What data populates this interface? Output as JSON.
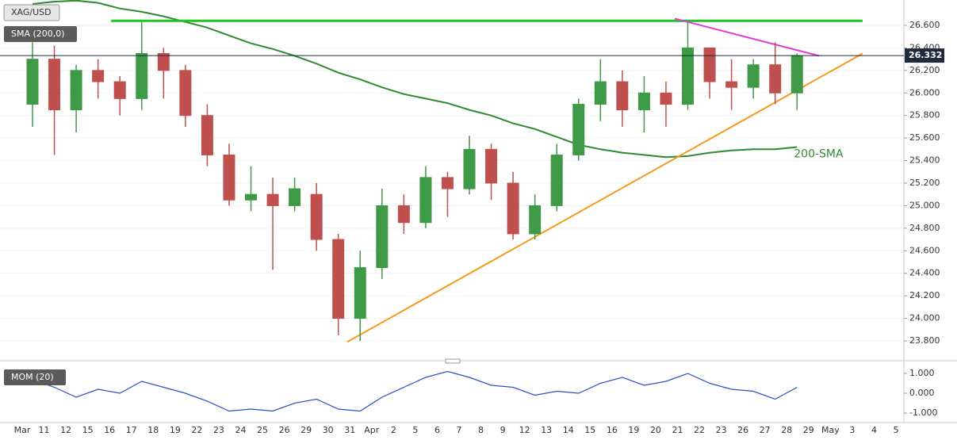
{
  "chart_data": {
    "type": "candlestick",
    "title": "XAG/USD",
    "categories": [
      "Mar",
      "11",
      "12",
      "15",
      "16",
      "17",
      "18",
      "19",
      "22",
      "23",
      "24",
      "25",
      "26",
      "29",
      "30",
      "31",
      "Apr",
      "2",
      "5",
      "6",
      "7",
      "8",
      "9",
      "12",
      "13",
      "14",
      "15",
      "16",
      "19",
      "20",
      "21",
      "22",
      "23",
      "26",
      "27",
      "28",
      "29",
      "May",
      "3",
      "4",
      "5"
    ],
    "open": [
      25.9,
      26.3,
      25.85,
      26.2,
      26.1,
      25.95,
      26.35,
      26.2,
      25.8,
      25.45,
      25.05,
      25.1,
      25.0,
      25.1,
      24.7,
      24.0,
      24.45,
      25.0,
      24.85,
      25.25,
      25.15,
      25.5,
      25.2,
      24.75,
      25.0,
      25.45,
      25.9,
      26.1,
      25.85,
      26.0,
      25.9,
      26.4,
      26.1,
      26.05,
      26.25,
      26.0,
      null,
      null,
      null,
      null,
      null
    ],
    "high": [
      26.45,
      26.42,
      26.25,
      26.3,
      26.15,
      26.63,
      26.4,
      26.25,
      25.9,
      25.55,
      25.35,
      25.25,
      25.25,
      25.2,
      24.75,
      24.6,
      25.15,
      25.1,
      25.35,
      25.3,
      25.62,
      25.55,
      25.3,
      25.1,
      25.55,
      25.95,
      26.3,
      26.2,
      26.15,
      26.1,
      26.63,
      26.4,
      26.3,
      26.3,
      26.45,
      26.35,
      null,
      null,
      null,
      null,
      null
    ],
    "low": [
      25.7,
      25.45,
      25.65,
      25.95,
      25.8,
      25.85,
      25.95,
      25.7,
      25.35,
      25.0,
      24.95,
      24.43,
      24.95,
      24.6,
      23.85,
      23.8,
      24.35,
      24.75,
      24.8,
      24.9,
      25.1,
      25.05,
      24.7,
      24.7,
      24.95,
      25.4,
      25.75,
      25.7,
      25.65,
      25.7,
      25.85,
      25.95,
      25.85,
      25.95,
      25.9,
      25.85,
      null,
      null,
      null,
      null,
      null
    ],
    "close": [
      26.3,
      25.85,
      26.2,
      26.1,
      25.95,
      26.35,
      26.2,
      25.8,
      25.45,
      25.05,
      25.1,
      25.0,
      25.15,
      24.7,
      24.0,
      24.45,
      25.0,
      24.85,
      25.25,
      25.15,
      25.5,
      25.2,
      24.75,
      25.0,
      25.45,
      25.9,
      26.1,
      25.85,
      26.0,
      25.9,
      26.4,
      26.1,
      26.05,
      26.25,
      26.0,
      26.332,
      null,
      null,
      null,
      null,
      null
    ],
    "up_color": "#3e9a46",
    "down_color": "#c0504d",
    "ylim": [
      23.645,
      26.825
    ],
    "yticks": [
      {
        "value": 23.8,
        "label": "23.800"
      },
      {
        "value": 24.0,
        "label": "24.000"
      },
      {
        "value": 24.2,
        "label": "24.200"
      },
      {
        "value": 24.4,
        "label": "24.400"
      },
      {
        "value": 24.6,
        "label": "24.600"
      },
      {
        "value": 24.8,
        "label": "24.800"
      },
      {
        "value": 25.0,
        "label": "25.000"
      },
      {
        "value": 25.2,
        "label": "25.200"
      },
      {
        "value": 25.4,
        "label": "25.400"
      },
      {
        "value": 25.6,
        "label": "25.600"
      },
      {
        "value": 25.8,
        "label": "25.800"
      },
      {
        "value": 26.0,
        "label": "26.000"
      },
      {
        "value": 26.2,
        "label": "26.200"
      },
      {
        "value": 26.4,
        "label": "26.400"
      },
      {
        "value": 26.6,
        "label": "26.600"
      }
    ],
    "last_price": {
      "value": 26.332,
      "label": "26.332"
    },
    "last_price_color": "#1f2a3c",
    "sma": {
      "name": "SMA (200,0)",
      "color": "#2f8a2f",
      "values": [
        26.79,
        26.81,
        26.82,
        26.8,
        26.75,
        26.72,
        26.68,
        26.63,
        26.58,
        26.51,
        26.44,
        26.39,
        26.33,
        26.26,
        26.18,
        26.12,
        26.05,
        25.99,
        25.95,
        25.91,
        25.85,
        25.8,
        25.73,
        25.68,
        25.61,
        25.54,
        25.5,
        25.47,
        25.45,
        25.43,
        25.44,
        25.47,
        25.49,
        25.5,
        25.5,
        25.52,
        null,
        null,
        null,
        null,
        null
      ]
    },
    "annotation": "200-SMA",
    "trend_lines": [
      {
        "color": "#22c322",
        "points": [
          [
            3.6,
            26.64
          ],
          [
            38,
            26.64
          ]
        ]
      },
      {
        "color": "#e23ad6",
        "points": [
          [
            29.4,
            26.66
          ],
          [
            36,
            26.33
          ]
        ]
      },
      {
        "color": "#f59a1c",
        "points": [
          [
            14.4,
            23.79
          ],
          [
            38,
            26.35
          ]
        ]
      }
    ],
    "momentum": {
      "name": "MOM (20)",
      "color": "#2b4fc7",
      "values": [
        0.7,
        0.3,
        -0.2,
        0.2,
        0.0,
        0.6,
        0.3,
        0.0,
        -0.4,
        -0.9,
        -0.8,
        -0.9,
        -0.5,
        -0.3,
        -0.8,
        -0.9,
        -0.2,
        0.3,
        0.8,
        1.1,
        0.8,
        0.4,
        0.3,
        -0.1,
        0.1,
        0.0,
        0.5,
        0.8,
        0.4,
        0.6,
        1.0,
        0.5,
        0.2,
        0.1,
        -0.3,
        0.3,
        null,
        null,
        null,
        null,
        null
      ],
      "ylim": [
        -1.44,
        1.44
      ],
      "yticks": [
        {
          "value": -1,
          "label": "-1.000"
        },
        {
          "value": 0,
          "label": "0.000"
        },
        {
          "value": 1,
          "label": "1.000"
        }
      ]
    }
  }
}
